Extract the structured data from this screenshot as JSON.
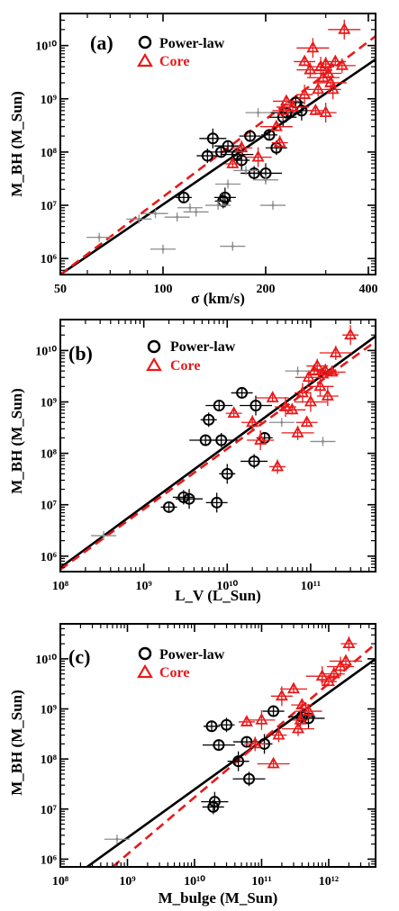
{
  "chart_data": [
    {
      "panel": "(a)",
      "type": "scatter",
      "x_scale": "log",
      "y_scale": "log",
      "xlim": [
        50,
        420
      ],
      "ylim": [
        500000,
        40000000000
      ],
      "xlabel": "σ (km/s)",
      "ylabel": "M_BH (M_Sun)",
      "x_ticks": [
        {
          "v": 50,
          "label": "50"
        },
        {
          "v": 100,
          "label": "100"
        },
        {
          "v": 200,
          "label": "200"
        },
        {
          "v": 400,
          "label": "400"
        }
      ],
      "y_ticks": [
        {
          "v": 1000000,
          "label": "10⁶"
        },
        {
          "v": 10000000,
          "label": "10⁷"
        },
        {
          "v": 100000000,
          "label": "10⁸"
        },
        {
          "v": 1000000000,
          "label": "10⁹"
        },
        {
          "v": 10000000000,
          "label": "10¹⁰"
        }
      ],
      "legend": [
        "Power-law",
        "Core"
      ],
      "series": [
        {
          "name": "Power-law",
          "marker": "circle",
          "color": "#000000",
          "points": [
            [
              115,
              14000000
            ],
            [
              135,
              85000000
            ],
            [
              140,
              180000000
            ],
            [
              148,
              100000000
            ],
            [
              150,
              12000000
            ],
            [
              152,
              14000000
            ],
            [
              155,
              130000000
            ],
            [
              165,
              90000000
            ],
            [
              170,
              70000000
            ],
            [
              180,
              200000000
            ],
            [
              185,
              40000000
            ],
            [
              200,
              40000000
            ],
            [
              205,
              210000000
            ],
            [
              215,
              120000000
            ],
            [
              225,
              450000000
            ],
            [
              230,
              550000000
            ],
            [
              245,
              850000000
            ],
            [
              255,
              600000000
            ]
          ]
        },
        {
          "name": "Core",
          "marker": "triangle",
          "color": "#e8191a",
          "points": [
            [
              160,
              60000000
            ],
            [
              170,
              120000000
            ],
            [
              190,
              80000000
            ],
            [
              215,
              300000000
            ],
            [
              220,
              150000000
            ],
            [
              225,
              600000000
            ],
            [
              230,
              900000000
            ],
            [
              240,
              700000000
            ],
            [
              260,
              1200000000
            ],
            [
              260,
              5000000000
            ],
            [
              270,
              3500000000
            ],
            [
              275,
              9000000000
            ],
            [
              280,
              600000000
            ],
            [
              285,
              1500000000
            ],
            [
              290,
              4000000000
            ],
            [
              295,
              2500000000
            ],
            [
              300,
              4500000000
            ],
            [
              300,
              550000000
            ],
            [
              305,
              3000000000
            ],
            [
              310,
              2000000000
            ],
            [
              315,
              1500000000
            ],
            [
              320,
              5000000000
            ],
            [
              335,
              4200000000
            ],
            [
              340,
              20000000000
            ]
          ]
        },
        {
          "name": "",
          "marker": "dot",
          "color": "#8c8c8c",
          "points": [
            [
              65,
              2500000
            ],
            [
              85,
              5500000
            ],
            [
              95,
              7000000
            ],
            [
              100,
              1500000
            ],
            [
              110,
              6000000
            ],
            [
              120,
              9000000
            ],
            [
              125,
              7500000
            ],
            [
              145,
              10000000
            ],
            [
              155,
              25000000
            ],
            [
              160,
              1700000
            ],
            [
              175,
              45000000
            ],
            [
              190,
              550000000
            ],
            [
              200,
              30000000
            ],
            [
              210,
              10000000
            ]
          ]
        }
      ],
      "fits": [
        {
          "color": "#000000",
          "dash": false,
          "p1": [
            50,
            500000
          ],
          "p2": [
            420,
            5500000000
          ]
        },
        {
          "color": "#e8191a",
          "dash": true,
          "p1": [
            50,
            500000
          ],
          "p2": [
            420,
            15000000000
          ]
        }
      ]
    },
    {
      "panel": "(b)",
      "type": "scatter",
      "x_scale": "log",
      "y_scale": "log",
      "xlim": [
        100000000,
        600000000000
      ],
      "ylim": [
        500000,
        40000000000
      ],
      "xlabel": "L_V (L_Sun)",
      "ylabel": "M_BH (M_Sun)",
      "x_ticks": [
        {
          "v": 100000000,
          "label": "10⁸"
        },
        {
          "v": 1000000000,
          "label": "10⁹"
        },
        {
          "v": 10000000000,
          "label": "10¹⁰"
        },
        {
          "v": 100000000000,
          "label": "10¹¹"
        }
      ],
      "y_ticks": [
        {
          "v": 1000000,
          "label": "10⁶"
        },
        {
          "v": 10000000,
          "label": "10⁷"
        },
        {
          "v": 100000000,
          "label": "10⁸"
        },
        {
          "v": 1000000000,
          "label": "10⁹"
        },
        {
          "v": 10000000000,
          "label": "10¹⁰"
        }
      ],
      "legend": [
        "Power-law",
        "Core"
      ],
      "series": [
        {
          "name": "Power-law",
          "marker": "circle",
          "color": "#000000",
          "points": [
            [
              2000000000,
              9000000
            ],
            [
              3000000000,
              14000000
            ],
            [
              3500000000,
              13000000
            ],
            [
              5500000000,
              180000000
            ],
            [
              6000000000,
              450000000
            ],
            [
              7500000000,
              11000000
            ],
            [
              8000000000,
              850000000
            ],
            [
              8500000000,
              180000000
            ],
            [
              10000000000,
              40000000
            ],
            [
              15000000000,
              1500000000
            ],
            [
              21000000000,
              70000000
            ],
            [
              22000000000,
              850000000
            ],
            [
              28000000000,
              200000000
            ]
          ]
        },
        {
          "name": "Core",
          "marker": "triangle",
          "color": "#e8191a",
          "points": [
            [
              12000000000,
              600000000
            ],
            [
              20000000000,
              400000000
            ],
            [
              25000000000,
              180000000
            ],
            [
              35000000000,
              1200000000
            ],
            [
              40000000000,
              55000000
            ],
            [
              50000000000,
              800000000
            ],
            [
              60000000000,
              700000000
            ],
            [
              70000000000,
              250000000
            ],
            [
              80000000000,
              1500000000
            ],
            [
              90000000000,
              400000000
            ],
            [
              95000000000,
              3000000000
            ],
            [
              100000000000,
              1000000000
            ],
            [
              110000000000,
              4000000000
            ],
            [
              120000000000,
              5000000000
            ],
            [
              130000000000,
              2000000000
            ],
            [
              140000000000,
              3500000000
            ],
            [
              150000000000,
              4000000000
            ],
            [
              160000000000,
              1300000000
            ],
            [
              180000000000,
              3800000000
            ],
            [
              200000000000,
              9000000000
            ],
            [
              300000000000,
              20000000000
            ]
          ]
        },
        {
          "name": "",
          "marker": "dot",
          "color": "#8c8c8c",
          "points": [
            [
              330000000,
              2500000
            ],
            [
              45000000000,
              400000000
            ],
            [
              70000000000,
              4000000000
            ],
            [
              140000000000,
              170000000
            ]
          ]
        }
      ],
      "fits": [
        {
          "color": "#000000",
          "dash": false,
          "p1": [
            100000000,
            600000
          ],
          "p2": [
            600000000000,
            19000000000
          ]
        },
        {
          "color": "#e8191a",
          "dash": true,
          "p1": [
            100000000,
            550000
          ],
          "p2": [
            600000000000,
            15000000000
          ]
        }
      ]
    },
    {
      "panel": "(c)",
      "type": "scatter",
      "x_scale": "log",
      "y_scale": "log",
      "xlim": [
        100000000,
        5000000000000
      ],
      "ylim": [
        700000,
        50000000000
      ],
      "xlabel": "M_bulge (M_Sun)",
      "ylabel": "M_BH (M_Sun)",
      "x_ticks": [
        {
          "v": 100000000,
          "label": "10⁸"
        },
        {
          "v": 1000000000,
          "label": "10⁹"
        },
        {
          "v": 10000000000,
          "label": "10¹⁰"
        },
        {
          "v": 100000000000,
          "label": "10¹¹"
        },
        {
          "v": 1000000000000,
          "label": "10¹²"
        }
      ],
      "y_ticks": [
        {
          "v": 1000000,
          "label": "10⁶"
        },
        {
          "v": 10000000,
          "label": "10⁷"
        },
        {
          "v": 100000000,
          "label": "10⁸"
        },
        {
          "v": 1000000000,
          "label": "10⁹"
        },
        {
          "v": 10000000000,
          "label": "10¹⁰"
        }
      ],
      "legend": [
        "Power-law",
        "Core"
      ],
      "series": [
        {
          "name": "Power-law",
          "marker": "circle",
          "color": "#000000",
          "points": [
            [
              18000000000,
              450000000
            ],
            [
              19000000000,
              11000000
            ],
            [
              20000000000,
              14000000
            ],
            [
              23000000000,
              190000000
            ],
            [
              30000000000,
              480000000
            ],
            [
              45000000000,
              90000000
            ],
            [
              60000000000,
              220000000
            ],
            [
              65000000000,
              40000000
            ],
            [
              110000000000,
              200000000
            ],
            [
              150000000000,
              900000000
            ],
            [
              400000000000,
              700000000
            ],
            [
              500000000000,
              650000000
            ]
          ]
        },
        {
          "name": "Core",
          "marker": "triangle",
          "color": "#e8191a",
          "points": [
            [
              60000000000,
              550000000
            ],
            [
              80000000000,
              200000000
            ],
            [
              100000000000,
              600000000
            ],
            [
              150000000000,
              80000000
            ],
            [
              180000000000,
              300000000
            ],
            [
              200000000000,
              1800000000
            ],
            [
              300000000000,
              2500000000
            ],
            [
              350000000000,
              400000000
            ],
            [
              380000000000,
              600000000
            ],
            [
              400000000000,
              1200000000
            ],
            [
              500000000000,
              900000000
            ],
            [
              800000000000,
              4500000000
            ],
            [
              1000000000000,
              3500000000
            ],
            [
              1200000000000,
              5000000000
            ],
            [
              1500000000000,
              7000000000
            ],
            [
              1800000000000,
              9000000000
            ],
            [
              2000000000000,
              20000000000
            ]
          ]
        },
        {
          "name": "",
          "marker": "dot",
          "color": "#8c8c8c",
          "points": [
            [
              700000000,
              2500000
            ]
          ]
        }
      ],
      "fits": [
        {
          "color": "#000000",
          "dash": false,
          "p1": [
            250000000,
            700000
          ],
          "p2": [
            5000000000000,
            10000000000
          ]
        },
        {
          "color": "#e8191a",
          "dash": true,
          "p1": [
            600000000,
            700000
          ],
          "p2": [
            5000000000000,
            20000000000
          ]
        }
      ]
    }
  ]
}
